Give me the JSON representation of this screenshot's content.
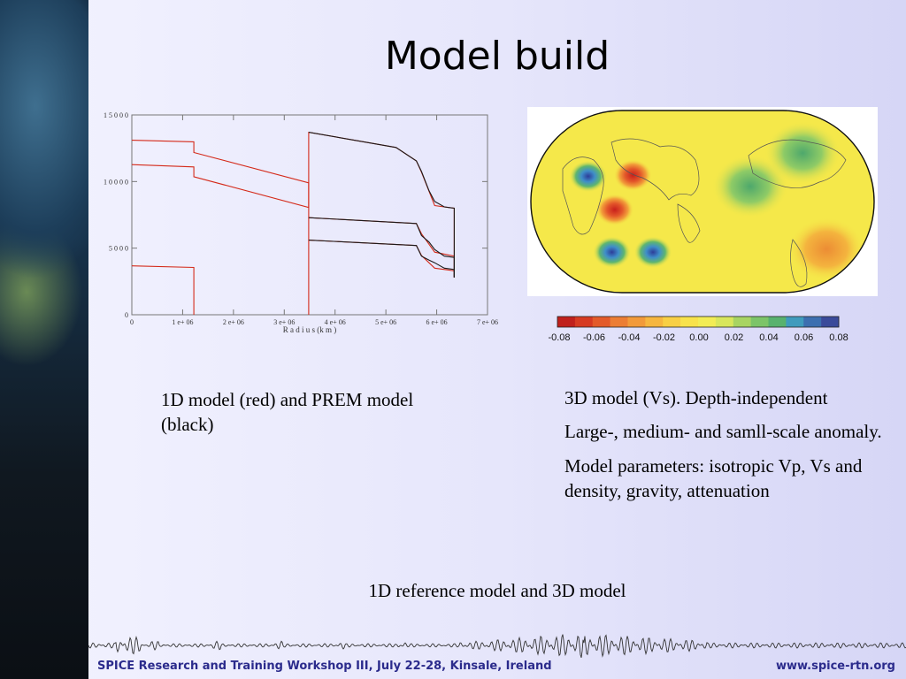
{
  "slide": {
    "title": "Model build",
    "caption_left": "1D model (red) and PREM model (black)",
    "caption_right": [
      "3D model (Vs). Depth-independent",
      "Large-, medium- and samll-scale anomaly.",
      "Model parameters: isotropic Vp, Vs and density, gravity, attenuation"
    ],
    "caption_bottom": "1D reference model and 3D model",
    "footer_left": "SPICE Research and Training Workshop III, July 22-28, Kinsale, Ireland",
    "footer_right": "www.spice-rtn.org"
  },
  "colorbar": {
    "ticks": [
      "-0.08",
      "-0.06",
      "-0.04",
      "-0.02",
      "0.00",
      "0.02",
      "0.04",
      "0.06",
      "0.08"
    ],
    "colors": [
      "#c0201c",
      "#d63a22",
      "#e35a2a",
      "#ec7d34",
      "#f29a3a",
      "#f6b63f",
      "#f8cf45",
      "#f8e24b",
      "#f2ec55",
      "#d8e65c",
      "#a8d462",
      "#7cc468",
      "#58b26e",
      "#3f9bbd",
      "#3c6fb0",
      "#3a4a9a"
    ]
  },
  "map": {
    "background": "#f5e84a",
    "anomalies": [
      {
        "lon": -160,
        "lat": 15,
        "value": 0.03
      },
      {
        "lon": 30,
        "lat": 25,
        "value": 0.07
      },
      {
        "lon": 77,
        "lat": 26,
        "value": -0.07
      },
      {
        "lon": 58,
        "lat": -8,
        "value": -0.07
      },
      {
        "lon": 55,
        "lat": -50,
        "value": 0.07
      },
      {
        "lon": 98,
        "lat": -50,
        "value": 0.07
      },
      {
        "lon": -105,
        "lat": 48,
        "value": 0.03
      },
      {
        "lon": -80,
        "lat": -47,
        "value": -0.03
      }
    ]
  },
  "chart_data": {
    "type": "line",
    "xlabel": "R a d i u s  (k m )",
    "ylabel": "",
    "xlim": [
      0,
      7000000
    ],
    "ylim": [
      0,
      15000
    ],
    "x_ticks": [
      "0",
      "1 e+ 06",
      "2 e+ 06",
      "3 e+ 06",
      "4 e+ 06",
      "5 e+ 06",
      "6 e+ 06",
      "7 e+ 06"
    ],
    "y_ticks": [
      "0",
      "5 0 0 0",
      "1 0 0 0 0",
      "1 5 0 0 0"
    ],
    "series": [
      {
        "name": "1D model (red)",
        "color": "#d42a1a",
        "curves": [
          [
            [
              0,
              13100
            ],
            [
              1221500,
              12980
            ],
            [
              1221500,
              12180
            ],
            [
              3480000,
              9900
            ],
            [
              3480000,
              0
            ]
          ],
          [
            [
              0,
              11270
            ],
            [
              1221500,
              11100
            ],
            [
              1221500,
              10360
            ],
            [
              3480000,
              8060
            ],
            [
              3480000,
              13700
            ],
            [
              5200000,
              12560
            ],
            [
              5600000,
              11550
            ],
            [
              5701000,
              10700
            ],
            [
              5960000,
              8200
            ],
            [
              6346000,
              8000
            ],
            [
              6346000,
              2800
            ]
          ],
          [
            [
              0,
              3670
            ],
            [
              1221500,
              3550
            ],
            [
              1221500,
              0
            ]
          ],
          [
            [
              3480000,
              7290
            ],
            [
              5600000,
              6850
            ],
            [
              5701000,
              6080
            ],
            [
              5960000,
              4700
            ],
            [
              6346000,
              4400
            ],
            [
              6346000,
              2800
            ]
          ],
          [
            [
              3480000,
              5600
            ],
            [
              5600000,
              5200
            ],
            [
              5701000,
              4450
            ],
            [
              5960000,
              3500
            ],
            [
              6346000,
              3300
            ],
            [
              6346000,
              2800
            ]
          ]
        ]
      },
      {
        "name": "PREM model (black)",
        "color": "#1a1a1a",
        "curves": [
          [
            [
              3480000,
              13700
            ],
            [
              5200000,
              12560
            ],
            [
              5600000,
              11550
            ],
            [
              5701000,
              10750
            ],
            [
              5850000,
              9300
            ],
            [
              5960000,
              8500
            ],
            [
              6151000,
              8100
            ],
            [
              6346000,
              8000
            ],
            [
              6346000,
              2800
            ]
          ],
          [
            [
              3480000,
              7290
            ],
            [
              5600000,
              6850
            ],
            [
              5701000,
              5950
            ],
            [
              5850000,
              5450
            ],
            [
              5960000,
              4900
            ],
            [
              6151000,
              4400
            ],
            [
              6346000,
              4300
            ],
            [
              6346000,
              2800
            ]
          ],
          [
            [
              3480000,
              5600
            ],
            [
              5600000,
              5200
            ],
            [
              5701000,
              4400
            ],
            [
              5850000,
              4100
            ],
            [
              5960000,
              3900
            ],
            [
              6151000,
              3500
            ],
            [
              6346000,
              3400
            ],
            [
              6346000,
              2800
            ]
          ]
        ]
      }
    ]
  }
}
